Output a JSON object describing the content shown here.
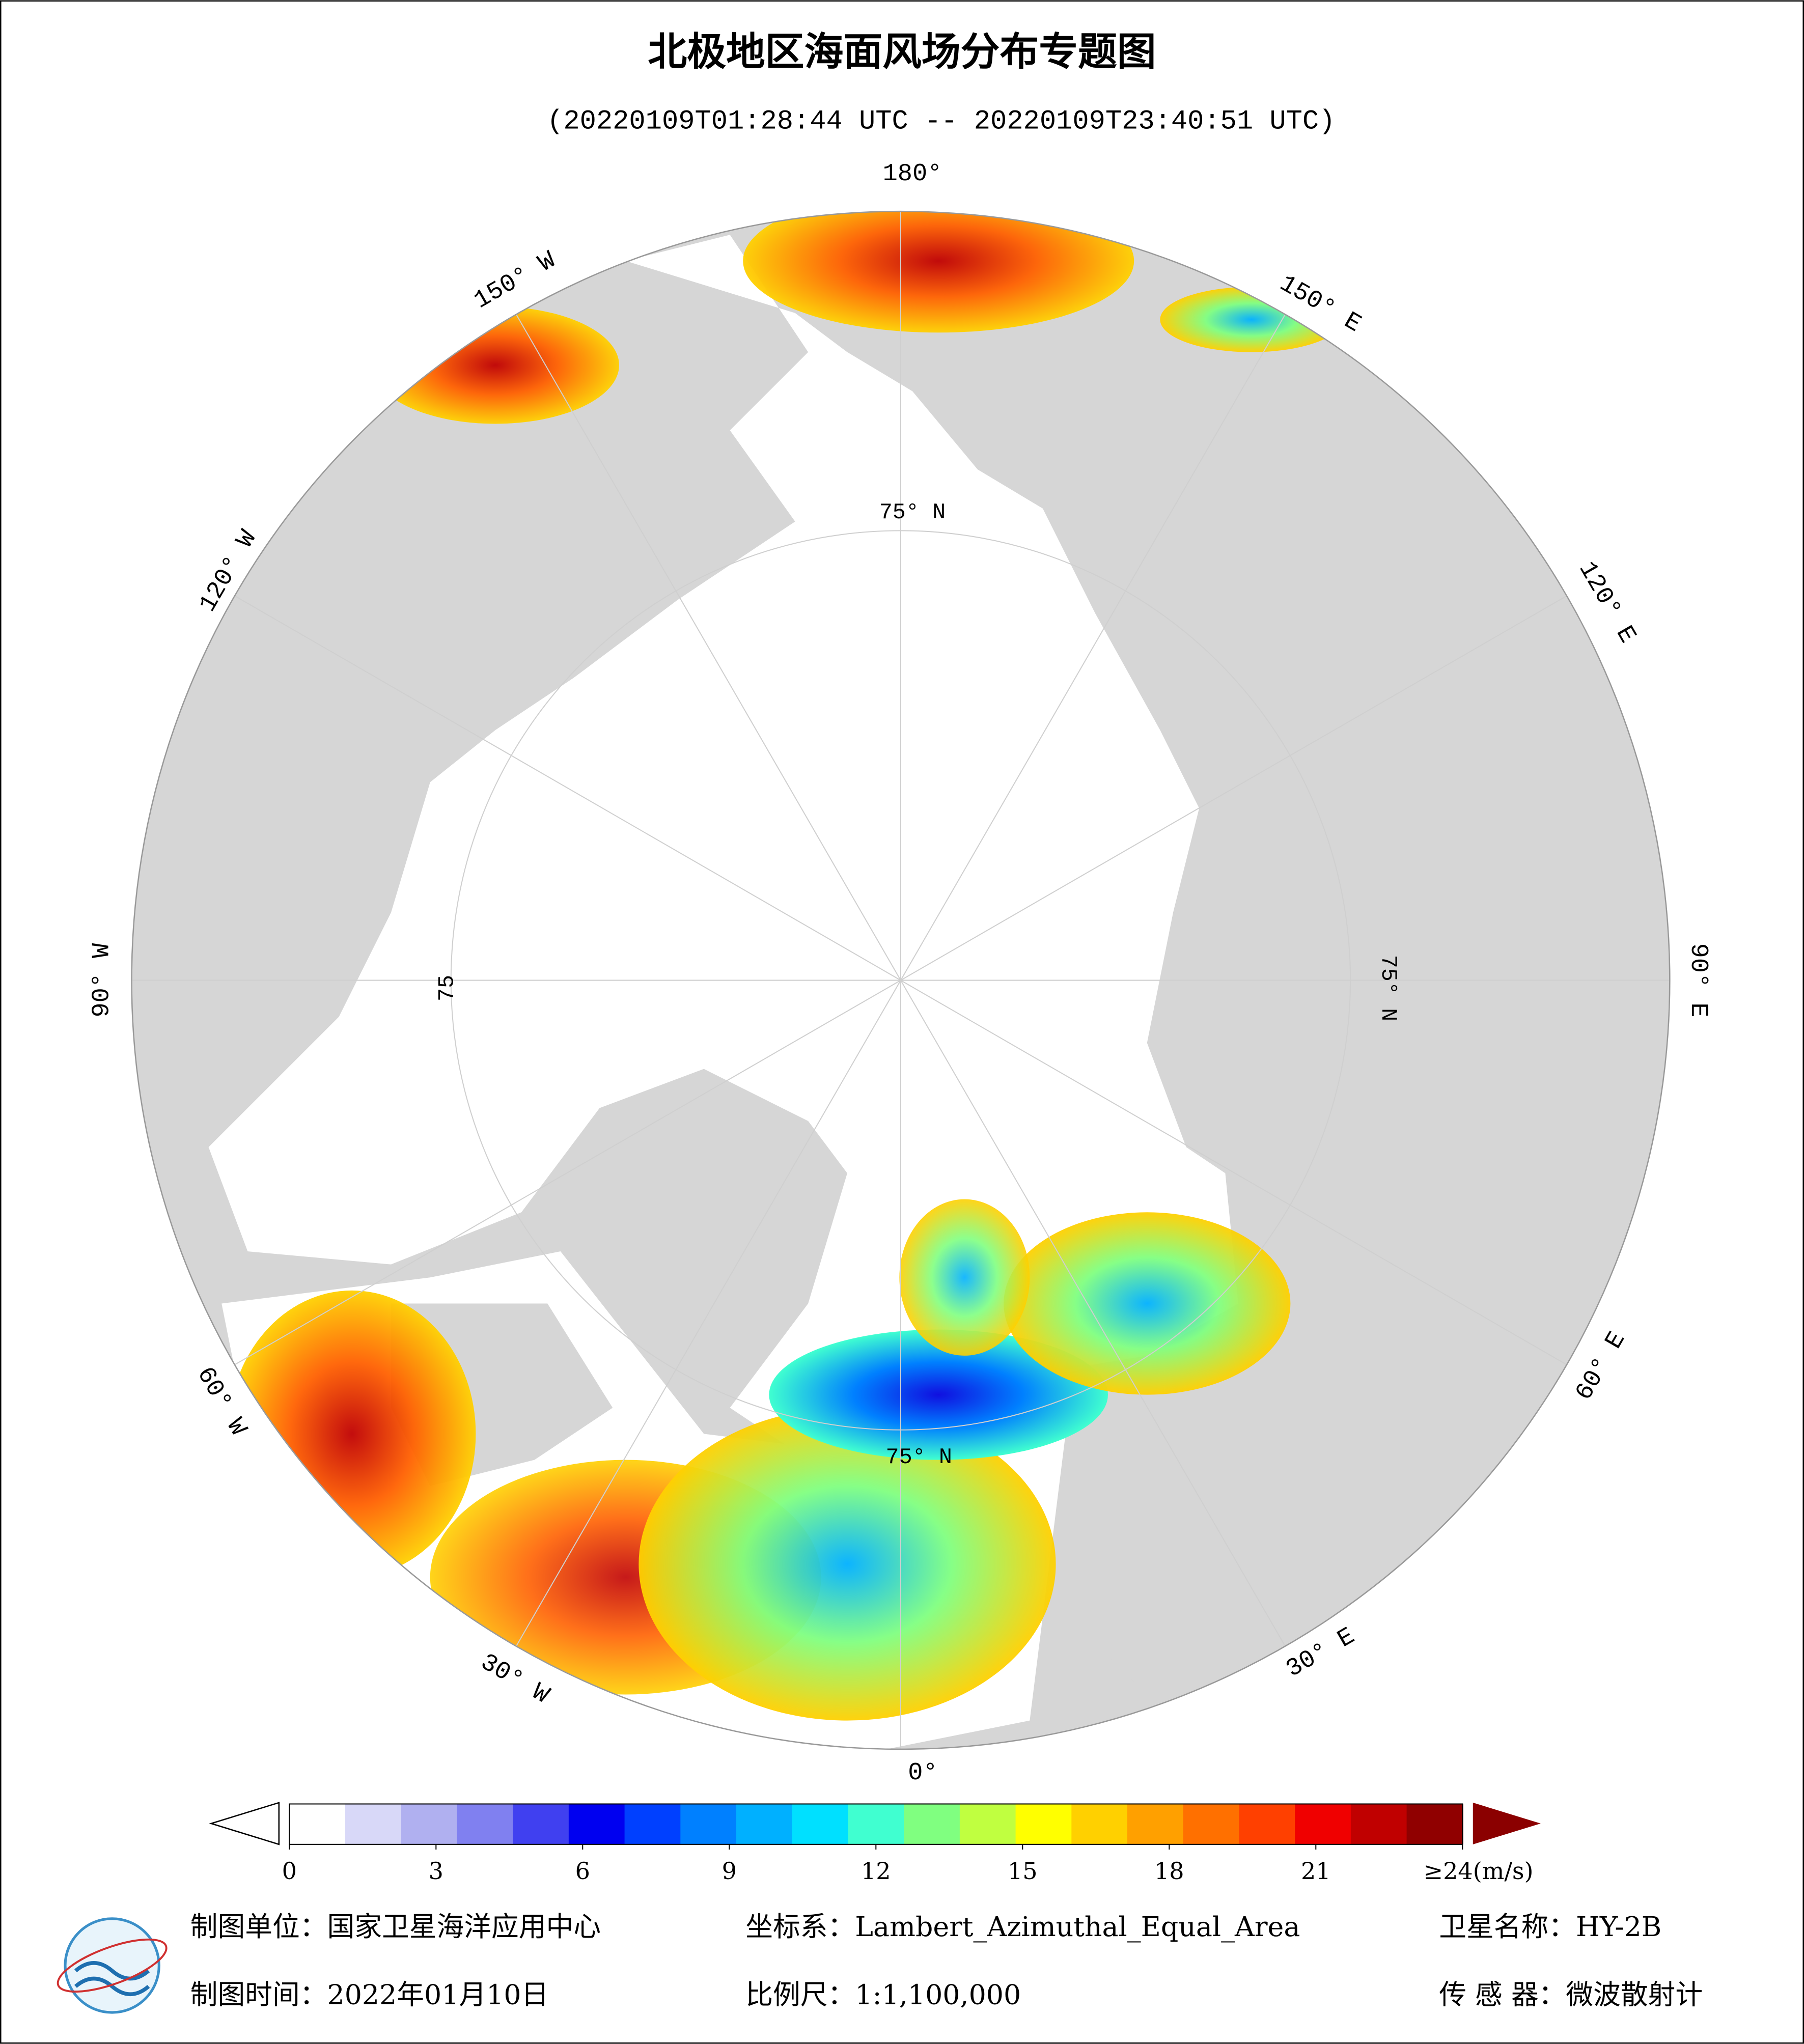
{
  "title": "北极地区海面风场分布专题图",
  "subtitle": "(20220109T01:28:44 UTC -- 20220109T23:40:51 UTC)",
  "map": {
    "longitude_labels": [
      "180°",
      "150° W",
      "120° W",
      "90° W",
      "60° W",
      "30° W",
      "0°",
      "30° E",
      "60° E",
      "90° E",
      "120° E",
      "150° E"
    ],
    "latitude_labels": [
      "75° N",
      "75° N",
      "75° N",
      "75"
    ]
  },
  "colorbar": {
    "range": [
      0,
      24
    ],
    "ticks": [
      0,
      3,
      6,
      9,
      12,
      15,
      18,
      21,
      {
        "value": 24,
        "label": "≥24(m/s)"
      }
    ],
    "colors": [
      "#ffffff",
      "#d8d8f8",
      "#b0b0f0",
      "#8080f0",
      "#4040f0",
      "#0000f0",
      "#0040ff",
      "#0080ff",
      "#00b0ff",
      "#00e0ff",
      "#40ffd0",
      "#80ff80",
      "#c0ff40",
      "#ffff00",
      "#ffd000",
      "#ffa000",
      "#ff7000",
      "#ff4000",
      "#f00000",
      "#c00000",
      "#900000"
    ]
  },
  "footer": {
    "unit": "制图单位：国家卫星海洋应用中心",
    "projection": "坐标系：Lambert_Azimuthal_Equal_Area",
    "satellite": "卫星名称：HY-2B",
    "date": "制图时间：2022年01月10日",
    "scale": "比例尺：1:1,100,000",
    "sensor": "传 感 器：微波散射计"
  }
}
